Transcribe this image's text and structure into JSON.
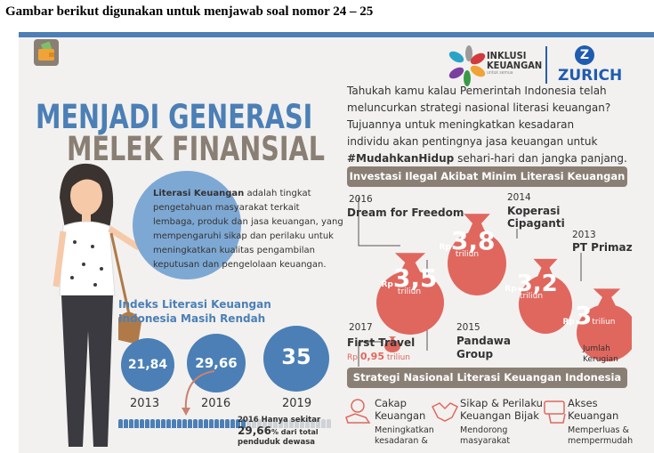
{
  "heading": "Gambar berikut digunakan untuk menjawab soal nomor 24 – 25",
  "logo": {
    "inklusi": "INKLUSI",
    "keuangan": "KEUANGAN",
    "tagline": "untuk semua",
    "zurich": "ZURICH",
    "zurich_mark": "Z"
  },
  "title": {
    "line1": "MENJADI GENERASI",
    "line2": "MELEK FINANSIAL"
  },
  "intro": [
    "Tahukah kamu kalau Pemerintah Indonesia telah",
    "meluncurkan strategi nasional literasi keuangan?",
    "Tujuannya untuk meningkatkan kesadaran",
    "individu akan pentingnya jasa keuangan untuk"
  ],
  "intro_hashtag": "#MudahkanHidup",
  "intro_end": " sehari-hari dan jangka panjang.",
  "definition": {
    "bold": "Literasi Keuangan",
    "lines": [
      " adalah tingkat",
      "pengetahuan masyarakat terkait",
      "lembaga, produk dan jasa keuangan, yang",
      "mempengaruhi sikap dan perilaku untuk",
      "meningkatkan kualitas pengambilan",
      "keputusan dan pengelolaan keuangan."
    ]
  },
  "index": {
    "title1": "Indeks Literasi Keuangan",
    "title2": "Indonesia Masih Rendah",
    "items": [
      {
        "value": "21,84",
        "year": "2013"
      },
      {
        "value": "29,66",
        "year": "2016"
      },
      {
        "value": "35",
        "year": "2019"
      }
    ],
    "note1": "2016 Hanya sekitar",
    "note2": "29,66",
    "note2b": "% dari total",
    "note3": "penduduk dewasa",
    "fraction": 0.2966
  },
  "illegal": {
    "title": "Investasi Ilegal Akibat Minim Literasi Keuangan",
    "rp": "Rp",
    "unit": "triliun",
    "cases": [
      {
        "year": "2016",
        "name": "Dream for Freedom",
        "amount": "3,5"
      },
      {
        "year": "2015",
        "name1": "Pandawa",
        "name2": "Group",
        "amount": "3,8"
      },
      {
        "year": "2014",
        "name1": "Koperasi",
        "name2": "Cipaganti",
        "amount": "3,2"
      },
      {
        "year": "2013",
        "name": "PT Primaz",
        "amount": "3"
      },
      {
        "year": "2017",
        "name": "First Travel",
        "amount": "0,95"
      }
    ],
    "legend1": "Jumlah",
    "legend2": "Kerugian"
  },
  "strategy": {
    "title": "Strategi Nasional Literasi Keuangan Indonesia",
    "items": [
      {
        "t1": "Cakap",
        "t2": "Keuangan",
        "d1": "Meningkatkan",
        "d2": "kesadaran &"
      },
      {
        "t1": "Sikap & Perilaku",
        "t2": "Keuangan Bijak",
        "d1": "Mendorong",
        "d2": "masyarakat"
      },
      {
        "t1": "Akses",
        "t2": "Keuangan",
        "d1": "Memperluas &",
        "d2": "mempermudah"
      }
    ]
  },
  "colors": {
    "blue": "#4b7fb6",
    "brown": "#8a7f74",
    "red": "#e0675e"
  }
}
